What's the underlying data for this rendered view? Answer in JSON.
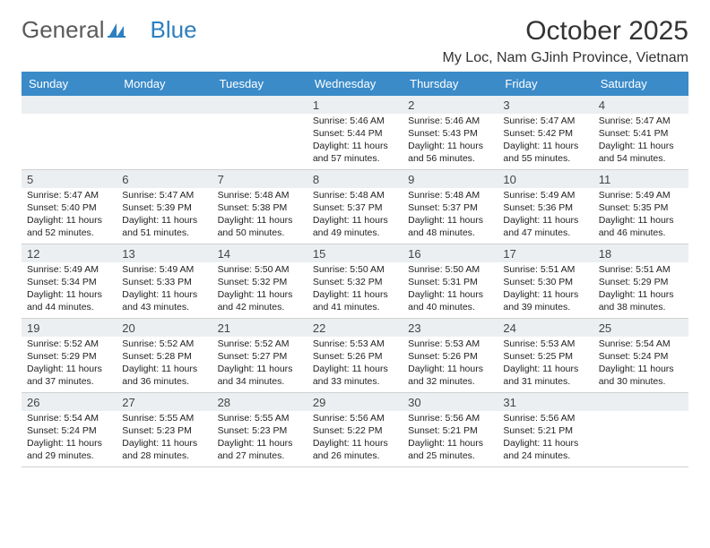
{
  "brand": {
    "part1": "General",
    "part2": "Blue"
  },
  "title": "October 2025",
  "location": "My Loc, Nam GJinh Province, Vietnam",
  "header_color": "#3b8bc9",
  "header_text_color": "#ffffff",
  "daynum_bg": "#eceff1",
  "border_color": "#d0d0d0",
  "weekdays": [
    "Sunday",
    "Monday",
    "Tuesday",
    "Wednesday",
    "Thursday",
    "Friday",
    "Saturday"
  ],
  "weeks": [
    [
      {
        "n": "",
        "sr": "",
        "ss": "",
        "dl": ""
      },
      {
        "n": "",
        "sr": "",
        "ss": "",
        "dl": ""
      },
      {
        "n": "",
        "sr": "",
        "ss": "",
        "dl": ""
      },
      {
        "n": "1",
        "sr": "Sunrise: 5:46 AM",
        "ss": "Sunset: 5:44 PM",
        "dl": "Daylight: 11 hours and 57 minutes."
      },
      {
        "n": "2",
        "sr": "Sunrise: 5:46 AM",
        "ss": "Sunset: 5:43 PM",
        "dl": "Daylight: 11 hours and 56 minutes."
      },
      {
        "n": "3",
        "sr": "Sunrise: 5:47 AM",
        "ss": "Sunset: 5:42 PM",
        "dl": "Daylight: 11 hours and 55 minutes."
      },
      {
        "n": "4",
        "sr": "Sunrise: 5:47 AM",
        "ss": "Sunset: 5:41 PM",
        "dl": "Daylight: 11 hours and 54 minutes."
      }
    ],
    [
      {
        "n": "5",
        "sr": "Sunrise: 5:47 AM",
        "ss": "Sunset: 5:40 PM",
        "dl": "Daylight: 11 hours and 52 minutes."
      },
      {
        "n": "6",
        "sr": "Sunrise: 5:47 AM",
        "ss": "Sunset: 5:39 PM",
        "dl": "Daylight: 11 hours and 51 minutes."
      },
      {
        "n": "7",
        "sr": "Sunrise: 5:48 AM",
        "ss": "Sunset: 5:38 PM",
        "dl": "Daylight: 11 hours and 50 minutes."
      },
      {
        "n": "8",
        "sr": "Sunrise: 5:48 AM",
        "ss": "Sunset: 5:37 PM",
        "dl": "Daylight: 11 hours and 49 minutes."
      },
      {
        "n": "9",
        "sr": "Sunrise: 5:48 AM",
        "ss": "Sunset: 5:37 PM",
        "dl": "Daylight: 11 hours and 48 minutes."
      },
      {
        "n": "10",
        "sr": "Sunrise: 5:49 AM",
        "ss": "Sunset: 5:36 PM",
        "dl": "Daylight: 11 hours and 47 minutes."
      },
      {
        "n": "11",
        "sr": "Sunrise: 5:49 AM",
        "ss": "Sunset: 5:35 PM",
        "dl": "Daylight: 11 hours and 46 minutes."
      }
    ],
    [
      {
        "n": "12",
        "sr": "Sunrise: 5:49 AM",
        "ss": "Sunset: 5:34 PM",
        "dl": "Daylight: 11 hours and 44 minutes."
      },
      {
        "n": "13",
        "sr": "Sunrise: 5:49 AM",
        "ss": "Sunset: 5:33 PM",
        "dl": "Daylight: 11 hours and 43 minutes."
      },
      {
        "n": "14",
        "sr": "Sunrise: 5:50 AM",
        "ss": "Sunset: 5:32 PM",
        "dl": "Daylight: 11 hours and 42 minutes."
      },
      {
        "n": "15",
        "sr": "Sunrise: 5:50 AM",
        "ss": "Sunset: 5:32 PM",
        "dl": "Daylight: 11 hours and 41 minutes."
      },
      {
        "n": "16",
        "sr": "Sunrise: 5:50 AM",
        "ss": "Sunset: 5:31 PM",
        "dl": "Daylight: 11 hours and 40 minutes."
      },
      {
        "n": "17",
        "sr": "Sunrise: 5:51 AM",
        "ss": "Sunset: 5:30 PM",
        "dl": "Daylight: 11 hours and 39 minutes."
      },
      {
        "n": "18",
        "sr": "Sunrise: 5:51 AM",
        "ss": "Sunset: 5:29 PM",
        "dl": "Daylight: 11 hours and 38 minutes."
      }
    ],
    [
      {
        "n": "19",
        "sr": "Sunrise: 5:52 AM",
        "ss": "Sunset: 5:29 PM",
        "dl": "Daylight: 11 hours and 37 minutes."
      },
      {
        "n": "20",
        "sr": "Sunrise: 5:52 AM",
        "ss": "Sunset: 5:28 PM",
        "dl": "Daylight: 11 hours and 36 minutes."
      },
      {
        "n": "21",
        "sr": "Sunrise: 5:52 AM",
        "ss": "Sunset: 5:27 PM",
        "dl": "Daylight: 11 hours and 34 minutes."
      },
      {
        "n": "22",
        "sr": "Sunrise: 5:53 AM",
        "ss": "Sunset: 5:26 PM",
        "dl": "Daylight: 11 hours and 33 minutes."
      },
      {
        "n": "23",
        "sr": "Sunrise: 5:53 AM",
        "ss": "Sunset: 5:26 PM",
        "dl": "Daylight: 11 hours and 32 minutes."
      },
      {
        "n": "24",
        "sr": "Sunrise: 5:53 AM",
        "ss": "Sunset: 5:25 PM",
        "dl": "Daylight: 11 hours and 31 minutes."
      },
      {
        "n": "25",
        "sr": "Sunrise: 5:54 AM",
        "ss": "Sunset: 5:24 PM",
        "dl": "Daylight: 11 hours and 30 minutes."
      }
    ],
    [
      {
        "n": "26",
        "sr": "Sunrise: 5:54 AM",
        "ss": "Sunset: 5:24 PM",
        "dl": "Daylight: 11 hours and 29 minutes."
      },
      {
        "n": "27",
        "sr": "Sunrise: 5:55 AM",
        "ss": "Sunset: 5:23 PM",
        "dl": "Daylight: 11 hours and 28 minutes."
      },
      {
        "n": "28",
        "sr": "Sunrise: 5:55 AM",
        "ss": "Sunset: 5:23 PM",
        "dl": "Daylight: 11 hours and 27 minutes."
      },
      {
        "n": "29",
        "sr": "Sunrise: 5:56 AM",
        "ss": "Sunset: 5:22 PM",
        "dl": "Daylight: 11 hours and 26 minutes."
      },
      {
        "n": "30",
        "sr": "Sunrise: 5:56 AM",
        "ss": "Sunset: 5:21 PM",
        "dl": "Daylight: 11 hours and 25 minutes."
      },
      {
        "n": "31",
        "sr": "Sunrise: 5:56 AM",
        "ss": "Sunset: 5:21 PM",
        "dl": "Daylight: 11 hours and 24 minutes."
      },
      {
        "n": "",
        "sr": "",
        "ss": "",
        "dl": ""
      }
    ]
  ]
}
